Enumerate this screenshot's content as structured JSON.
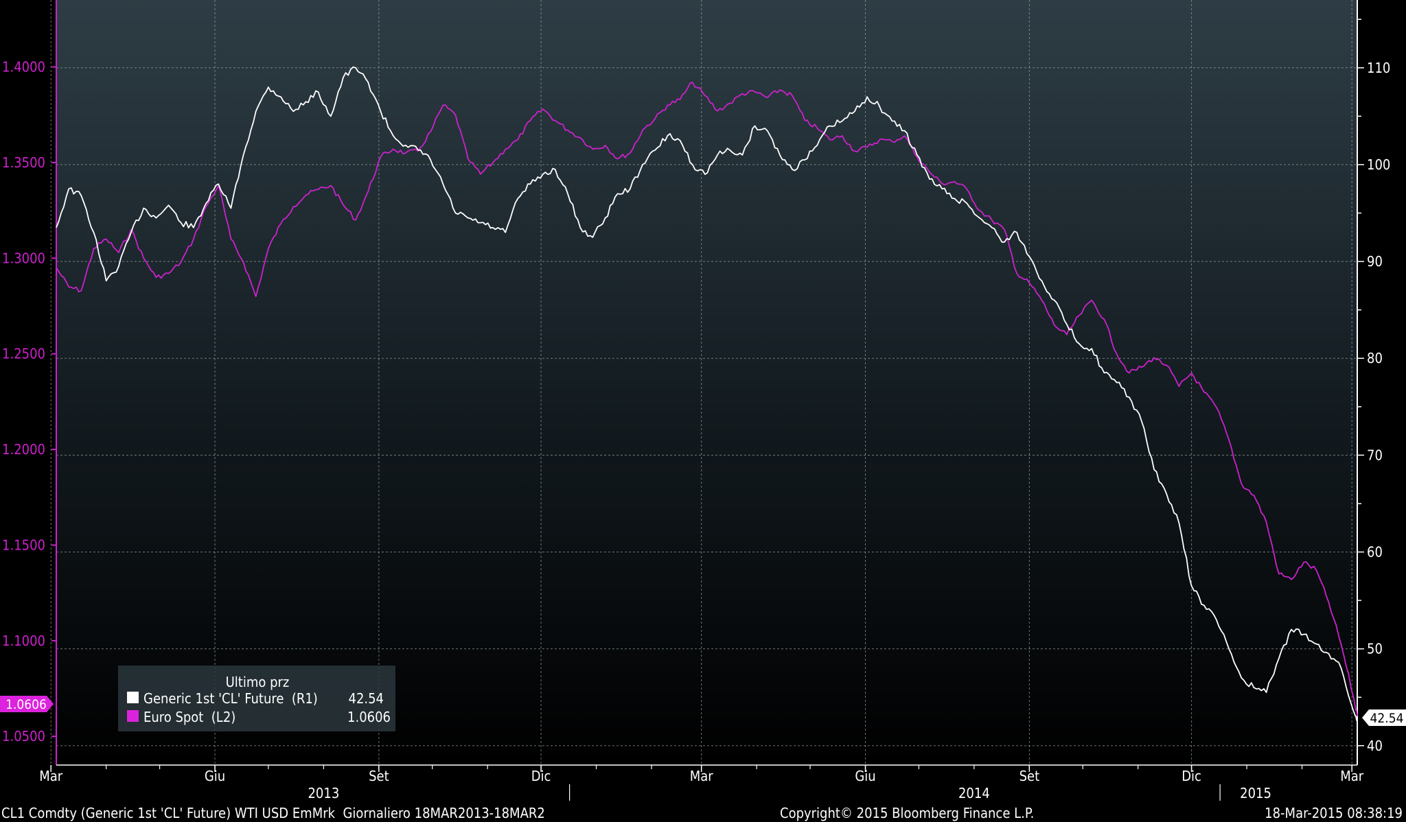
{
  "colors": {
    "background_top": "#2e3d45",
    "background_bottom": "#000000",
    "grid": "#9aa3a8",
    "oil_series": "#ffffff",
    "euro_series": "#cc22cc",
    "left_axis": "#cc22cc",
    "right_axis": "#ffffff",
    "text": "#ffffff"
  },
  "legend": {
    "title": "Ultimo prz",
    "items": [
      {
        "label": "Generic 1st 'CL' Future  (R1)",
        "value": "42.54",
        "color": "#ffffff"
      },
      {
        "label": "Euro Spot  (L2)",
        "value": "1.0606",
        "color": "#dd22dd"
      }
    ]
  },
  "last_value_tags": {
    "left": "1.0606",
    "right": "42.54"
  },
  "footer": {
    "left": "CL1 Comdty (Generic 1st 'CL' Future) WTI USD EmMrk  Giornaliero 18MAR2013-18MAR2",
    "center": "Copyright© 2015 Bloomberg Finance L.P.",
    "right": "18-Mar-2015 08:38:19"
  },
  "chart_data": {
    "type": "line",
    "x_range": [
      "2013-03-18",
      "2015-03-18"
    ],
    "x_ticks": [
      {
        "label": "Mar",
        "date": "2013-03-15"
      },
      {
        "label": "Giu",
        "date": "2013-06-15"
      },
      {
        "label": "Set",
        "date": "2013-09-15"
      },
      {
        "label": "Dic",
        "date": "2013-12-15"
      },
      {
        "label": "Mar",
        "date": "2014-03-15"
      },
      {
        "label": "Giu",
        "date": "2014-06-15"
      },
      {
        "label": "Set",
        "date": "2014-09-15"
      },
      {
        "label": "Dic",
        "date": "2014-12-15"
      },
      {
        "label": "Mar",
        "date": "2015-03-15"
      }
    ],
    "year_labels": [
      {
        "label": "2013",
        "date": "2013-08-15"
      },
      {
        "label": "2014",
        "date": "2014-08-15"
      },
      {
        "label": "2015",
        "date": "2015-01-20"
      }
    ],
    "year_dividers": [
      "2013-12-31",
      "2014-12-31"
    ],
    "y_left": {
      "series": "Euro Spot",
      "range": [
        1.035,
        1.435
      ],
      "ticks": [
        "1.4000",
        "1.3500",
        "1.3000",
        "1.2500",
        "1.2000",
        "1.1500",
        "1.1000",
        "1.0500"
      ],
      "tick_values": [
        1.4,
        1.35,
        1.3,
        1.25,
        1.2,
        1.15,
        1.1,
        1.05
      ]
    },
    "y_right": {
      "series": "Generic 1st 'CL' Future",
      "range": [
        38.0,
        117.0
      ],
      "ticks": [
        "110",
        "100",
        "90",
        "80",
        "70",
        "60",
        "50",
        "40"
      ],
      "tick_values": [
        110,
        100,
        90,
        80,
        70,
        60,
        50,
        40
      ]
    },
    "grid": true,
    "legend_position": "bottom-left",
    "series": [
      {
        "name": "Generic 1st 'CL' Future",
        "axis": "right",
        "color": "#ffffff",
        "x": [
          "2013-03-18",
          "2013-03-25",
          "2013-04-01",
          "2013-04-08",
          "2013-04-15",
          "2013-04-22",
          "2013-04-29",
          "2013-05-06",
          "2013-05-13",
          "2013-05-20",
          "2013-05-27",
          "2013-06-03",
          "2013-06-10",
          "2013-06-17",
          "2013-06-24",
          "2013-07-01",
          "2013-07-08",
          "2013-07-15",
          "2013-07-22",
          "2013-07-29",
          "2013-08-05",
          "2013-08-12",
          "2013-08-19",
          "2013-08-26",
          "2013-09-02",
          "2013-09-09",
          "2013-09-16",
          "2013-09-23",
          "2013-09-30",
          "2013-10-07",
          "2013-10-14",
          "2013-10-21",
          "2013-10-28",
          "2013-11-04",
          "2013-11-11",
          "2013-11-18",
          "2013-11-25",
          "2013-12-02",
          "2013-12-09",
          "2013-12-16",
          "2013-12-23",
          "2013-12-30",
          "2014-01-06",
          "2014-01-13",
          "2014-01-20",
          "2014-01-27",
          "2014-02-03",
          "2014-02-10",
          "2014-02-17",
          "2014-02-24",
          "2014-03-03",
          "2014-03-10",
          "2014-03-17",
          "2014-03-24",
          "2014-03-31",
          "2014-04-07",
          "2014-04-14",
          "2014-04-21",
          "2014-04-28",
          "2014-05-05",
          "2014-05-12",
          "2014-05-19",
          "2014-05-26",
          "2014-06-02",
          "2014-06-09",
          "2014-06-16",
          "2014-06-23",
          "2014-06-30",
          "2014-07-07",
          "2014-07-14",
          "2014-07-21",
          "2014-07-28",
          "2014-08-04",
          "2014-08-11",
          "2014-08-18",
          "2014-08-25",
          "2014-09-01",
          "2014-09-08",
          "2014-09-15",
          "2014-09-22",
          "2014-09-29",
          "2014-10-06",
          "2014-10-13",
          "2014-10-20",
          "2014-10-27",
          "2014-11-03",
          "2014-11-10",
          "2014-11-17",
          "2014-11-24",
          "2014-12-01",
          "2014-12-08",
          "2014-12-15",
          "2014-12-22",
          "2014-12-29",
          "2015-01-05",
          "2015-01-12",
          "2015-01-19",
          "2015-01-26",
          "2015-02-02",
          "2015-02-09",
          "2015-02-16",
          "2015-02-23",
          "2015-03-02",
          "2015-03-09",
          "2015-03-16",
          "2015-03-18"
        ],
        "values": [
          93.5,
          97.5,
          96.8,
          93.0,
          88.0,
          89.5,
          93.0,
          95.5,
          94.5,
          95.8,
          94.0,
          93.5,
          96.0,
          98.0,
          95.5,
          101.0,
          105.5,
          108.0,
          107.0,
          105.5,
          106.5,
          107.5,
          105.0,
          109.0,
          110.0,
          108.5,
          105.5,
          103.0,
          102.0,
          101.5,
          100.5,
          98.0,
          95.0,
          94.5,
          94.0,
          93.5,
          93.0,
          96.5,
          98.0,
          99.0,
          99.5,
          97.0,
          93.5,
          92.5,
          94.5,
          97.0,
          97.5,
          100.0,
          101.5,
          103.0,
          102.5,
          100.0,
          99.0,
          101.0,
          101.5,
          101.0,
          104.0,
          103.5,
          101.0,
          99.5,
          100.5,
          102.0,
          104.0,
          104.5,
          105.5,
          107.0,
          106.0,
          104.5,
          103.5,
          101.0,
          98.5,
          97.5,
          96.5,
          96.0,
          94.5,
          93.5,
          92.0,
          93.0,
          90.5,
          88.0,
          86.0,
          83.5,
          81.5,
          81.0,
          78.5,
          77.5,
          76.0,
          73.5,
          68.5,
          66.0,
          63.0,
          56.5,
          54.5,
          53.0,
          50.0,
          47.0,
          46.0,
          45.5,
          49.0,
          52.0,
          51.5,
          50.5,
          49.5,
          48.0,
          43.5,
          42.54
        ]
      },
      {
        "name": "Euro Spot",
        "axis": "left",
        "color": "#cc22cc",
        "x": [
          "2013-03-18",
          "2013-03-25",
          "2013-04-01",
          "2013-04-08",
          "2013-04-15",
          "2013-04-22",
          "2013-04-29",
          "2013-05-06",
          "2013-05-13",
          "2013-05-20",
          "2013-05-27",
          "2013-06-03",
          "2013-06-10",
          "2013-06-17",
          "2013-06-24",
          "2013-07-01",
          "2013-07-08",
          "2013-07-15",
          "2013-07-22",
          "2013-07-29",
          "2013-08-05",
          "2013-08-12",
          "2013-08-19",
          "2013-08-26",
          "2013-09-02",
          "2013-09-09",
          "2013-09-16",
          "2013-09-23",
          "2013-09-30",
          "2013-10-07",
          "2013-10-14",
          "2013-10-21",
          "2013-10-28",
          "2013-11-04",
          "2013-11-11",
          "2013-11-18",
          "2013-11-25",
          "2013-12-02",
          "2013-12-09",
          "2013-12-16",
          "2013-12-23",
          "2013-12-30",
          "2014-01-06",
          "2014-01-13",
          "2014-01-20",
          "2014-01-27",
          "2014-02-03",
          "2014-02-10",
          "2014-02-17",
          "2014-02-24",
          "2014-03-03",
          "2014-03-10",
          "2014-03-17",
          "2014-03-24",
          "2014-03-31",
          "2014-04-07",
          "2014-04-14",
          "2014-04-21",
          "2014-04-28",
          "2014-05-05",
          "2014-05-12",
          "2014-05-19",
          "2014-05-26",
          "2014-06-02",
          "2014-06-09",
          "2014-06-16",
          "2014-06-23",
          "2014-06-30",
          "2014-07-07",
          "2014-07-14",
          "2014-07-21",
          "2014-07-28",
          "2014-08-04",
          "2014-08-11",
          "2014-08-18",
          "2014-08-25",
          "2014-09-01",
          "2014-09-08",
          "2014-09-15",
          "2014-09-22",
          "2014-09-29",
          "2014-10-06",
          "2014-10-13",
          "2014-10-20",
          "2014-10-27",
          "2014-11-03",
          "2014-11-10",
          "2014-11-17",
          "2014-11-24",
          "2014-12-01",
          "2014-12-08",
          "2014-12-15",
          "2014-12-22",
          "2014-12-29",
          "2015-01-05",
          "2015-01-12",
          "2015-01-19",
          "2015-01-26",
          "2015-02-02",
          "2015-02-09",
          "2015-02-16",
          "2015-02-23",
          "2015-03-02",
          "2015-03-09",
          "2015-03-16",
          "2015-03-18"
        ],
        "values": [
          1.295,
          1.285,
          1.283,
          1.305,
          1.31,
          1.303,
          1.315,
          1.3,
          1.29,
          1.292,
          1.298,
          1.31,
          1.327,
          1.338,
          1.31,
          1.298,
          1.28,
          1.305,
          1.318,
          1.327,
          1.333,
          1.336,
          1.338,
          1.328,
          1.32,
          1.335,
          1.353,
          1.357,
          1.355,
          1.356,
          1.366,
          1.38,
          1.375,
          1.352,
          1.344,
          1.35,
          1.357,
          1.362,
          1.372,
          1.378,
          1.372,
          1.367,
          1.363,
          1.357,
          1.359,
          1.352,
          1.355,
          1.367,
          1.373,
          1.38,
          1.383,
          1.392,
          1.385,
          1.377,
          1.381,
          1.386,
          1.387,
          1.384,
          1.388,
          1.385,
          1.372,
          1.368,
          1.362,
          1.364,
          1.356,
          1.358,
          1.362,
          1.361,
          1.364,
          1.353,
          1.345,
          1.339,
          1.34,
          1.336,
          1.325,
          1.32,
          1.315,
          1.292,
          1.287,
          1.278,
          1.265,
          1.26,
          1.27,
          1.278,
          1.268,
          1.25,
          1.24,
          1.243,
          1.248,
          1.244,
          1.233,
          1.24,
          1.23,
          1.222,
          1.205,
          1.182,
          1.176,
          1.162,
          1.135,
          1.132,
          1.141,
          1.137,
          1.12,
          1.098,
          1.07,
          1.0606
        ]
      }
    ]
  }
}
